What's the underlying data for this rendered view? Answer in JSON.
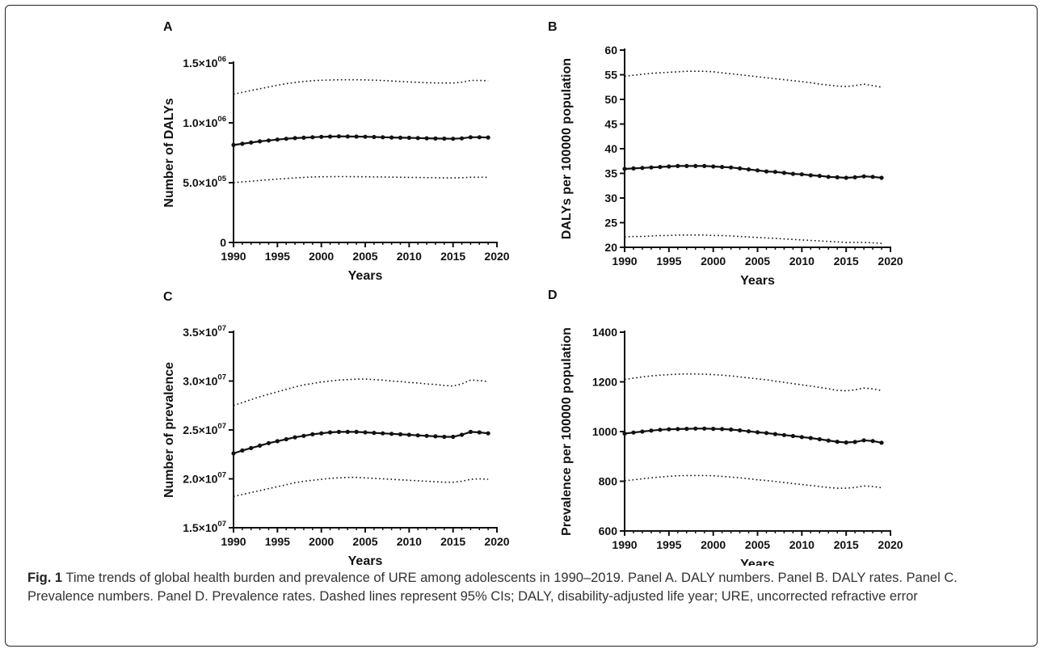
{
  "caption": {
    "label": "Fig. 1",
    "text": "Time trends of global health burden and prevalence of URE among adolescents in 1990–2019. Panel A. DALY numbers. Panel B. DALY rates. Panel C. Prevalence numbers. Panel D. Prevalence rates. Dashed lines represent 95% CIs; DALY, disability-adjusted life year; URE, uncorrected refractive error"
  },
  "chart_data": [
    {
      "panel": "A",
      "type": "line",
      "xlabel": "Years",
      "ylabel": "Number of DALYs",
      "xlim": [
        1990,
        2020
      ],
      "ylim": [
        0,
        1500000
      ],
      "x_ticks": [
        "1990",
        "1995",
        "2000",
        "2005",
        "2010",
        "2015",
        "2020"
      ],
      "y_ticks": [
        {
          "value": 0,
          "base": "0",
          "exp": ""
        },
        {
          "value": 500000,
          "base": "5.0×10",
          "exp": "05"
        },
        {
          "value": 1000000,
          "base": "1.0×10",
          "exp": "06"
        },
        {
          "value": 1500000,
          "base": "1.5×10",
          "exp": "06"
        }
      ],
      "x": [
        1990,
        1991,
        1992,
        1993,
        1994,
        1995,
        1996,
        1997,
        1998,
        1999,
        2000,
        2001,
        2002,
        2003,
        2004,
        2005,
        2006,
        2007,
        2008,
        2009,
        2010,
        2011,
        2012,
        2013,
        2014,
        2015,
        2016,
        2017,
        2018,
        2019
      ],
      "series": [
        {
          "role": "estimate",
          "values": [
            815000,
            825000,
            835000,
            845000,
            853000,
            860000,
            867000,
            872000,
            876000,
            880000,
            883000,
            885000,
            887000,
            886000,
            885000,
            884000,
            882000,
            880000,
            878000,
            876000,
            875000,
            873000,
            871000,
            869000,
            868000,
            867000,
            870000,
            880000,
            880000,
            878000
          ]
        },
        {
          "role": "upper",
          "values": [
            1240000,
            1255000,
            1270000,
            1285000,
            1300000,
            1315000,
            1328000,
            1338000,
            1346000,
            1352000,
            1356000,
            1358000,
            1360000,
            1360000,
            1360000,
            1359000,
            1357000,
            1354000,
            1350000,
            1346000,
            1342000,
            1339000,
            1336000,
            1334000,
            1333000,
            1333000,
            1340000,
            1355000,
            1355000,
            1352000
          ]
        },
        {
          "role": "lower",
          "values": [
            500000,
            506000,
            512000,
            518000,
            524000,
            530000,
            535000,
            540000,
            544000,
            547000,
            549000,
            550000,
            551000,
            551000,
            550000,
            549000,
            548000,
            547000,
            546000,
            545000,
            544000,
            543000,
            542000,
            541000,
            540000,
            540000,
            541000,
            545000,
            545000,
            544000
          ]
        }
      ]
    },
    {
      "panel": "B",
      "type": "line",
      "xlabel": "Years",
      "ylabel": "DALYs per 100000 population",
      "xlim": [
        1990,
        2020
      ],
      "ylim": [
        20,
        60
      ],
      "x_ticks": [
        "1990",
        "1995",
        "2000",
        "2005",
        "2010",
        "2015",
        "2020"
      ],
      "y_ticks": [
        {
          "value": 20,
          "base": "20",
          "exp": ""
        },
        {
          "value": 25,
          "base": "25",
          "exp": ""
        },
        {
          "value": 30,
          "base": "30",
          "exp": ""
        },
        {
          "value": 35,
          "base": "35",
          "exp": ""
        },
        {
          "value": 40,
          "base": "40",
          "exp": ""
        },
        {
          "value": 45,
          "base": "45",
          "exp": ""
        },
        {
          "value": 50,
          "base": "50",
          "exp": ""
        },
        {
          "value": 55,
          "base": "55",
          "exp": ""
        },
        {
          "value": 60,
          "base": "60",
          "exp": ""
        }
      ],
      "x": [
        1990,
        1991,
        1992,
        1993,
        1994,
        1995,
        1996,
        1997,
        1998,
        1999,
        2000,
        2001,
        2002,
        2003,
        2004,
        2005,
        2006,
        2007,
        2008,
        2009,
        2010,
        2011,
        2012,
        2013,
        2014,
        2015,
        2016,
        2017,
        2018,
        2019
      ],
      "series": [
        {
          "role": "estimate",
          "values": [
            35.9,
            36.0,
            36.1,
            36.2,
            36.3,
            36.4,
            36.5,
            36.5,
            36.5,
            36.5,
            36.4,
            36.3,
            36.2,
            36.0,
            35.8,
            35.6,
            35.4,
            35.3,
            35.1,
            34.9,
            34.8,
            34.6,
            34.5,
            34.3,
            34.2,
            34.1,
            34.2,
            34.4,
            34.3,
            34.1
          ]
        },
        {
          "role": "upper",
          "values": [
            54.7,
            54.9,
            55.1,
            55.3,
            55.4,
            55.5,
            55.6,
            55.7,
            55.7,
            55.7,
            55.6,
            55.4,
            55.2,
            55.0,
            54.8,
            54.6,
            54.4,
            54.2,
            54.0,
            53.8,
            53.6,
            53.4,
            53.1,
            52.9,
            52.7,
            52.6,
            52.8,
            53.1,
            52.8,
            52.5
          ]
        },
        {
          "role": "lower",
          "values": [
            22.1,
            22.2,
            22.2,
            22.3,
            22.4,
            22.4,
            22.5,
            22.5,
            22.5,
            22.5,
            22.4,
            22.4,
            22.3,
            22.2,
            22.1,
            22.0,
            21.9,
            21.8,
            21.7,
            21.6,
            21.5,
            21.4,
            21.3,
            21.2,
            21.1,
            21.0,
            21.0,
            21.0,
            20.9,
            20.8
          ]
        }
      ]
    },
    {
      "panel": "C",
      "type": "line",
      "xlabel": "Years",
      "ylabel": "Number of prevalence",
      "xlim": [
        1990,
        2020
      ],
      "ylim": [
        15000000,
        35000000
      ],
      "x_ticks": [
        "1990",
        "1995",
        "2000",
        "2005",
        "2010",
        "2015",
        "2020"
      ],
      "y_ticks": [
        {
          "value": 15000000,
          "base": "1.5×10",
          "exp": "07"
        },
        {
          "value": 20000000,
          "base": "2.0×10",
          "exp": "07"
        },
        {
          "value": 25000000,
          "base": "2.5×10",
          "exp": "07"
        },
        {
          "value": 30000000,
          "base": "3.0×10",
          "exp": "07"
        },
        {
          "value": 35000000,
          "base": "3.5×10",
          "exp": "07"
        }
      ],
      "x": [
        1990,
        1991,
        1992,
        1993,
        1994,
        1995,
        1996,
        1997,
        1998,
        1999,
        2000,
        2001,
        2002,
        2003,
        2004,
        2005,
        2006,
        2007,
        2008,
        2009,
        2010,
        2011,
        2012,
        2013,
        2014,
        2015,
        2016,
        2017,
        2018,
        2019
      ],
      "series": [
        {
          "role": "estimate",
          "values": [
            22600000,
            22900000,
            23150000,
            23400000,
            23650000,
            23850000,
            24050000,
            24250000,
            24400000,
            24550000,
            24650000,
            24750000,
            24800000,
            24800000,
            24800000,
            24750000,
            24700000,
            24650000,
            24600000,
            24550000,
            24500000,
            24450000,
            24400000,
            24350000,
            24300000,
            24300000,
            24500000,
            24800000,
            24750000,
            24650000
          ]
        },
        {
          "role": "upper",
          "values": [
            27500000,
            27800000,
            28100000,
            28400000,
            28650000,
            28900000,
            29150000,
            29400000,
            29600000,
            29750000,
            29900000,
            30000000,
            30100000,
            30150000,
            30200000,
            30200000,
            30150000,
            30100000,
            30000000,
            29950000,
            29850000,
            29800000,
            29700000,
            29650000,
            29550000,
            29500000,
            29700000,
            30100000,
            30050000,
            29950000
          ]
        },
        {
          "role": "lower",
          "values": [
            18200000,
            18400000,
            18600000,
            18800000,
            19000000,
            19200000,
            19400000,
            19600000,
            19750000,
            19850000,
            19950000,
            20050000,
            20100000,
            20150000,
            20150000,
            20100000,
            20050000,
            20000000,
            19950000,
            19900000,
            19850000,
            19800000,
            19750000,
            19700000,
            19650000,
            19650000,
            19750000,
            19950000,
            20000000,
            19950000
          ]
        }
      ]
    },
    {
      "panel": "D",
      "type": "line",
      "xlabel": "Years",
      "ylabel": "Prevalence per 100000 population",
      "xlim": [
        1990,
        2020
      ],
      "ylim": [
        600,
        1400
      ],
      "x_ticks": [
        "1990",
        "1995",
        "2000",
        "2005",
        "2010",
        "2015",
        "2020"
      ],
      "y_ticks": [
        {
          "value": 600,
          "base": "600",
          "exp": ""
        },
        {
          "value": 800,
          "base": "800",
          "exp": ""
        },
        {
          "value": 1000,
          "base": "1000",
          "exp": ""
        },
        {
          "value": 1200,
          "base": "1200",
          "exp": ""
        },
        {
          "value": 1400,
          "base": "1400",
          "exp": ""
        }
      ],
      "x": [
        1990,
        1991,
        1992,
        1993,
        1994,
        1995,
        1996,
        1997,
        1998,
        1999,
        2000,
        2001,
        2002,
        2003,
        2004,
        2005,
        2006,
        2007,
        2008,
        2009,
        2010,
        2011,
        2012,
        2013,
        2014,
        2015,
        2016,
        2017,
        2018,
        2019
      ],
      "series": [
        {
          "role": "estimate",
          "values": [
            992,
            996,
            1000,
            1004,
            1007,
            1009,
            1010,
            1011,
            1012,
            1012,
            1011,
            1010,
            1008,
            1005,
            1001,
            997,
            994,
            990,
            986,
            982,
            978,
            974,
            969,
            964,
            959,
            956,
            958,
            965,
            962,
            955
          ]
        },
        {
          "role": "upper",
          "values": [
            1210,
            1215,
            1220,
            1224,
            1227,
            1229,
            1231,
            1232,
            1232,
            1231,
            1229,
            1227,
            1224,
            1220,
            1216,
            1212,
            1208,
            1203,
            1198,
            1193,
            1188,
            1183,
            1178,
            1172,
            1166,
            1164,
            1168,
            1175,
            1172,
            1165
          ]
        },
        {
          "role": "lower",
          "values": [
            802,
            806,
            810,
            814,
            817,
            820,
            822,
            823,
            823,
            823,
            822,
            820,
            817,
            814,
            810,
            806,
            803,
            799,
            795,
            791,
            787,
            783,
            779,
            775,
            772,
            772,
            775,
            781,
            779,
            774
          ]
        }
      ]
    }
  ]
}
